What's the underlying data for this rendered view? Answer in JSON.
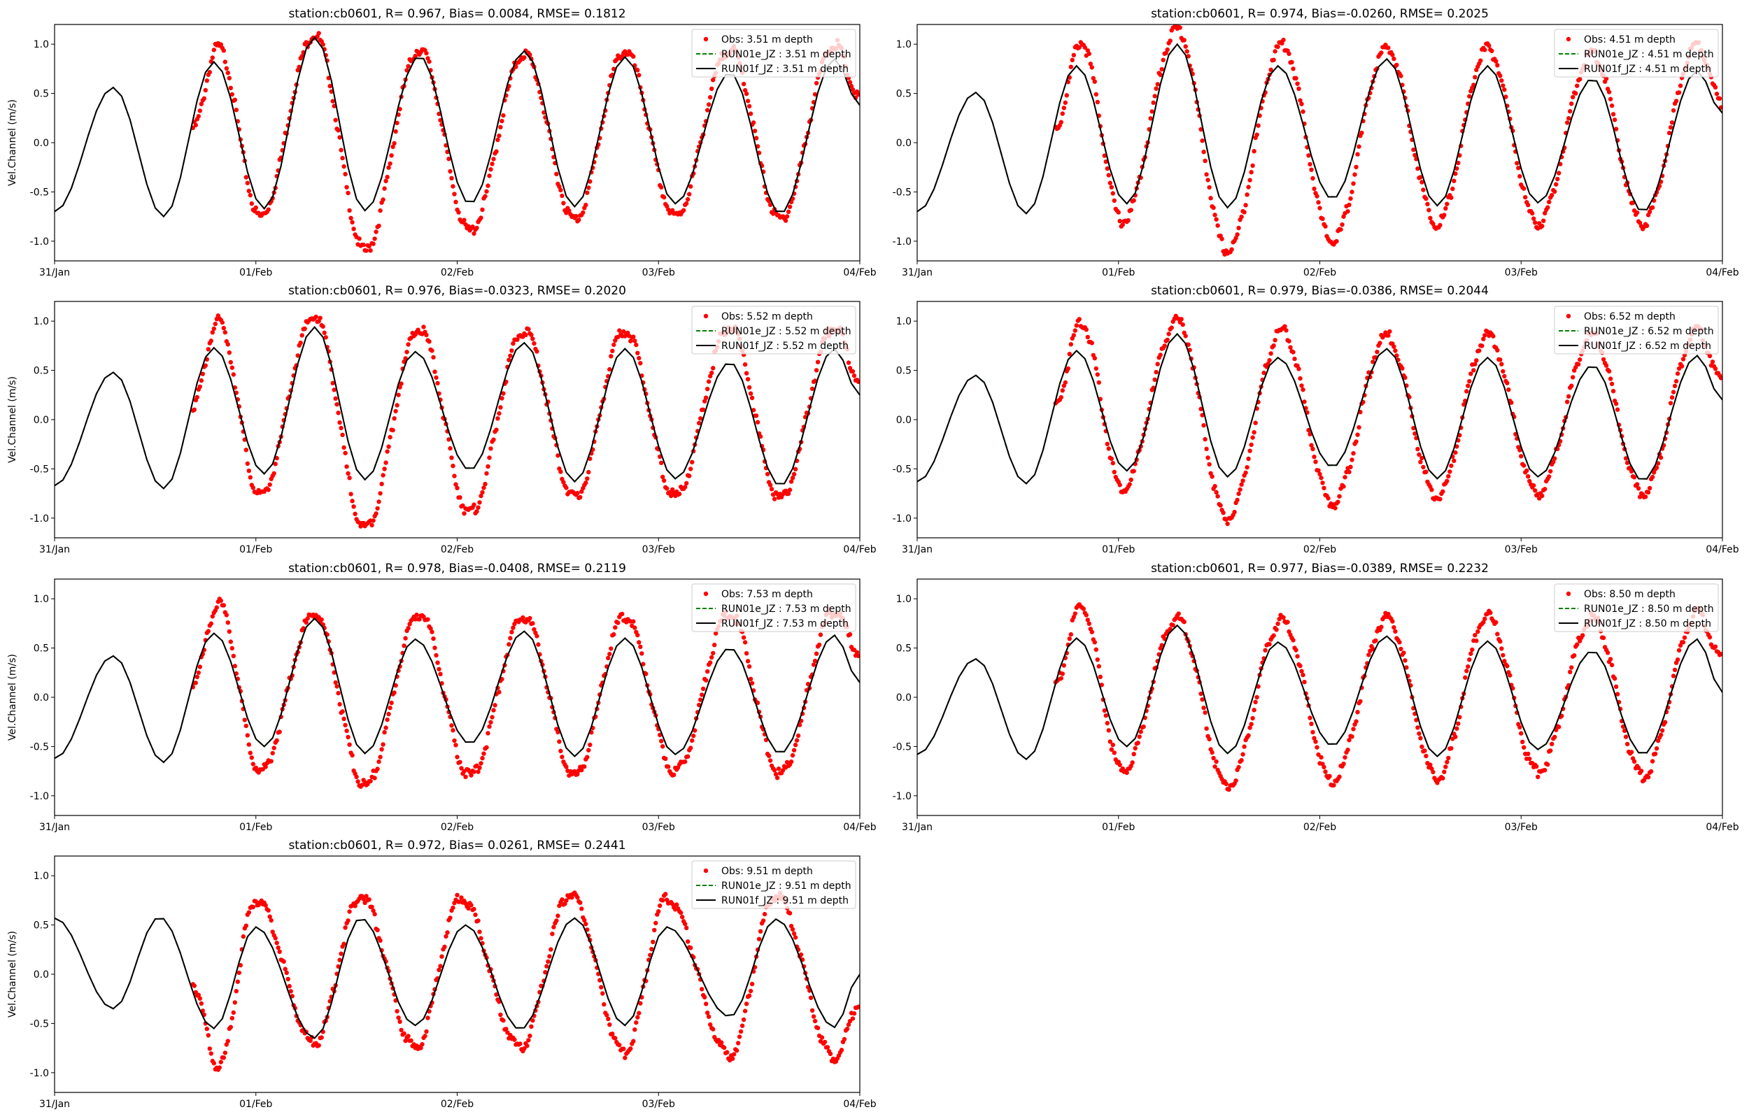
{
  "figure": {
    "ylabel": "Vel.Channel (m/s)",
    "xticks": [
      "31/Jan",
      "01/Feb",
      "02/Feb",
      "03/Feb",
      "04/Feb"
    ],
    "yticks": [
      "1.0",
      "0.5",
      "0.0",
      "-0.5",
      "-1.0"
    ],
    "colors": {
      "obs": "#ff0000",
      "run01e": "#008000",
      "run01f": "#000000"
    }
  },
  "chart_data": [
    {
      "type": "line+scatter",
      "title": "station:cb0601, R= 0.967, Bias= 0.0084, RMSE= 0.1812",
      "ylim": [
        -1.2,
        1.2
      ],
      "xlim": [
        "31/Jan 00:00",
        "04/Feb 00:00"
      ],
      "legend_position": "top-right",
      "legend": [
        "Obs: 3.51 m depth",
        "RUN01e_JZ : 3.51 m depth",
        "RUN01f_JZ : 3.51 m depth"
      ],
      "model_extrema": [
        [
          "31/Jan 00:00",
          -0.7
        ],
        [
          "31/Jan 07:00",
          0.56
        ],
        [
          "31/Jan 13:00",
          -0.75
        ],
        [
          "31/Jan 19:00",
          0.82
        ],
        [
          "01/Feb 01:00",
          -0.67
        ],
        [
          "01/Feb 07:00",
          1.07
        ],
        [
          "01/Feb 13:00",
          -0.69
        ],
        [
          "01/Feb 19:30",
          0.88
        ],
        [
          "02/Feb 01:30",
          -0.62
        ],
        [
          "02/Feb 08:00",
          0.93
        ],
        [
          "02/Feb 14:00",
          -0.65
        ],
        [
          "02/Feb 20:00",
          0.87
        ],
        [
          "03/Feb 02:00",
          -0.62
        ],
        [
          "03/Feb 08:30",
          0.71
        ],
        [
          "03/Feb 14:30",
          -0.72
        ],
        [
          "03/Feb 21:00",
          0.85
        ],
        [
          "04/Feb 00:00",
          0.38
        ]
      ],
      "obs_extrema": [
        [
          "31/Jan 16:30",
          0.15
        ],
        [
          "31/Jan 19:30",
          0.97
        ],
        [
          "01/Feb 00:30",
          -0.75
        ],
        [
          "01/Feb 07:00",
          1.1
        ],
        [
          "01/Feb 13:00",
          -1.1
        ],
        [
          "01/Feb 19:30",
          0.95
        ],
        [
          "02/Feb 01:30",
          -0.9
        ],
        [
          "02/Feb 08:00",
          0.9
        ],
        [
          "02/Feb 14:00",
          -0.78
        ],
        [
          "02/Feb 20:00",
          0.93
        ],
        [
          "03/Feb 02:00",
          -0.75
        ],
        [
          "03/Feb 08:30",
          0.95
        ],
        [
          "03/Feb 14:30",
          -0.78
        ],
        [
          "03/Feb 21:00",
          1.0
        ],
        [
          "04/Feb 00:00",
          0.45
        ]
      ]
    },
    {
      "type": "line+scatter",
      "title": "station:cb0601, R= 0.974, Bias=-0.0260, RMSE= 0.2025",
      "ylim": [
        -1.2,
        1.2
      ],
      "xlim": [
        "31/Jan 00:00",
        "04/Feb 00:00"
      ],
      "legend_position": "top-right",
      "legend": [
        "Obs: 4.51 m depth",
        "RUN01e_JZ : 4.51 m depth",
        "RUN01f_JZ : 4.51 m depth"
      ],
      "model_extrema": [
        [
          "31/Jan 00:00",
          -0.7
        ],
        [
          "31/Jan 07:00",
          0.51
        ],
        [
          "31/Jan 13:00",
          -0.72
        ],
        [
          "31/Jan 19:00",
          0.78
        ],
        [
          "01/Feb 01:00",
          -0.62
        ],
        [
          "01/Feb 07:00",
          1.0
        ],
        [
          "01/Feb 13:00",
          -0.66
        ],
        [
          "01/Feb 19:00",
          0.78
        ],
        [
          "02/Feb 01:30",
          -0.57
        ],
        [
          "02/Feb 08:00",
          0.85
        ],
        [
          "02/Feb 14:00",
          -0.64
        ],
        [
          "02/Feb 20:00",
          0.78
        ],
        [
          "03/Feb 02:00",
          -0.61
        ],
        [
          "03/Feb 08:30",
          0.65
        ],
        [
          "03/Feb 14:30",
          -0.7
        ],
        [
          "03/Feb 21:00",
          0.73
        ],
        [
          "04/Feb 00:00",
          0.3
        ]
      ],
      "obs_extrema": [
        [
          "31/Jan 16:30",
          0.15
        ],
        [
          "31/Jan 19:30",
          1.02
        ],
        [
          "01/Feb 00:30",
          -0.8
        ],
        [
          "01/Feb 07:00",
          1.15
        ],
        [
          "01/Feb 13:00",
          -1.1
        ],
        [
          "01/Feb 19:30",
          1.0
        ],
        [
          "02/Feb 01:30",
          -1.0
        ],
        [
          "02/Feb 08:00",
          0.95
        ],
        [
          "02/Feb 14:00",
          -0.82
        ],
        [
          "02/Feb 20:00",
          0.95
        ],
        [
          "03/Feb 02:00",
          -0.82
        ],
        [
          "03/Feb 08:30",
          0.9
        ],
        [
          "03/Feb 14:30",
          -0.82
        ],
        [
          "03/Feb 21:00",
          1.0
        ],
        [
          "04/Feb 00:00",
          0.4
        ]
      ]
    },
    {
      "type": "line+scatter",
      "title": "station:cb0601, R= 0.976, Bias=-0.0323, RMSE= 0.2020",
      "ylim": [
        -1.2,
        1.2
      ],
      "xlim": [
        "31/Jan 00:00",
        "04/Feb 00:00"
      ],
      "legend_position": "top-right",
      "legend": [
        "Obs: 5.52 m depth",
        "RUN01e_JZ : 5.52 m depth",
        "RUN01f_JZ : 5.52 m depth"
      ],
      "model_extrema": [
        [
          "31/Jan 00:00",
          -0.67
        ],
        [
          "31/Jan 07:00",
          0.48
        ],
        [
          "31/Jan 13:00",
          -0.7
        ],
        [
          "31/Jan 19:00",
          0.73
        ],
        [
          "01/Feb 01:00",
          -0.55
        ],
        [
          "01/Feb 07:00",
          0.94
        ],
        [
          "01/Feb 13:00",
          -0.61
        ],
        [
          "01/Feb 19:00",
          0.69
        ],
        [
          "02/Feb 01:30",
          -0.51
        ],
        [
          "02/Feb 08:00",
          0.78
        ],
        [
          "02/Feb 14:00",
          -0.63
        ],
        [
          "02/Feb 20:00",
          0.72
        ],
        [
          "03/Feb 02:00",
          -0.6
        ],
        [
          "03/Feb 08:30",
          0.58
        ],
        [
          "03/Feb 14:30",
          -0.67
        ],
        [
          "03/Feb 21:00",
          0.72
        ],
        [
          "04/Feb 00:00",
          0.25
        ]
      ],
      "obs_extrema": [
        [
          "31/Jan 16:30",
          0.15
        ],
        [
          "31/Jan 19:30",
          1.0
        ],
        [
          "01/Feb 00:30",
          -0.78
        ],
        [
          "01/Feb 07:00",
          1.05
        ],
        [
          "01/Feb 13:00",
          -1.1
        ],
        [
          "01/Feb 19:30",
          0.92
        ],
        [
          "02/Feb 01:30",
          -0.95
        ],
        [
          "02/Feb 08:00",
          0.9
        ],
        [
          "02/Feb 14:00",
          -0.8
        ],
        [
          "02/Feb 20:00",
          0.9
        ],
        [
          "03/Feb 02:00",
          -0.78
        ],
        [
          "03/Feb 08:30",
          0.95
        ],
        [
          "03/Feb 14:30",
          -0.8
        ],
        [
          "03/Feb 21:00",
          0.95
        ],
        [
          "04/Feb 00:00",
          0.4
        ]
      ]
    },
    {
      "type": "line+scatter",
      "title": "station:cb0601, R= 0.979, Bias=-0.0386, RMSE= 0.2044",
      "ylim": [
        -1.2,
        1.2
      ],
      "xlim": [
        "31/Jan 00:00",
        "04/Feb 00:00"
      ],
      "legend_position": "top-right",
      "legend": [
        "Obs: 6.52 m depth",
        "RUN01e_JZ : 6.52 m depth",
        "RUN01f_JZ : 6.52 m depth"
      ],
      "model_extrema": [
        [
          "31/Jan 00:00",
          -0.63
        ],
        [
          "31/Jan 07:00",
          0.45
        ],
        [
          "31/Jan 13:00",
          -0.65
        ],
        [
          "31/Jan 19:00",
          0.7
        ],
        [
          "01/Feb 01:00",
          -0.52
        ],
        [
          "01/Feb 07:00",
          0.87
        ],
        [
          "01/Feb 13:00",
          -0.58
        ],
        [
          "01/Feb 19:00",
          0.63
        ],
        [
          "02/Feb 01:30",
          -0.48
        ],
        [
          "02/Feb 08:00",
          0.72
        ],
        [
          "02/Feb 14:00",
          -0.6
        ],
        [
          "02/Feb 20:00",
          0.63
        ],
        [
          "03/Feb 02:00",
          -0.58
        ],
        [
          "03/Feb 08:30",
          0.55
        ],
        [
          "03/Feb 14:30",
          -0.62
        ],
        [
          "03/Feb 21:00",
          0.65
        ],
        [
          "04/Feb 00:00",
          0.2
        ]
      ],
      "obs_extrema": [
        [
          "31/Jan 16:30",
          0.15
        ],
        [
          "31/Jan 19:30",
          1.0
        ],
        [
          "01/Feb 00:30",
          -0.7
        ],
        [
          "01/Feb 07:00",
          1.0
        ],
        [
          "01/Feb 13:00",
          -1.0
        ],
        [
          "01/Feb 19:30",
          0.9
        ],
        [
          "02/Feb 01:30",
          -0.85
        ],
        [
          "02/Feb 08:00",
          0.85
        ],
        [
          "02/Feb 14:00",
          -0.78
        ],
        [
          "02/Feb 20:00",
          0.85
        ],
        [
          "03/Feb 02:00",
          -0.75
        ],
        [
          "03/Feb 08:30",
          0.85
        ],
        [
          "03/Feb 14:30",
          -0.75
        ],
        [
          "03/Feb 21:00",
          0.9
        ],
        [
          "04/Feb 00:00",
          0.4
        ]
      ]
    },
    {
      "type": "line+scatter",
      "title": "station:cb0601, R= 0.978, Bias=-0.0408, RMSE= 0.2119",
      "ylim": [
        -1.2,
        1.2
      ],
      "xlim": [
        "31/Jan 00:00",
        "04/Feb 00:00"
      ],
      "legend_position": "top-right",
      "legend": [
        "Obs: 7.53 m depth",
        "RUN01e_JZ : 7.53 m depth",
        "RUN01f_JZ : 7.53 m depth"
      ],
      "model_extrema": [
        [
          "31/Jan 00:00",
          -0.62
        ],
        [
          "31/Jan 07:00",
          0.42
        ],
        [
          "31/Jan 13:00",
          -0.66
        ],
        [
          "31/Jan 19:00",
          0.65
        ],
        [
          "01/Feb 01:00",
          -0.5
        ],
        [
          "01/Feb 07:00",
          0.8
        ],
        [
          "01/Feb 13:00",
          -0.57
        ],
        [
          "01/Feb 19:00",
          0.59
        ],
        [
          "02/Feb 01:30",
          -0.47
        ],
        [
          "02/Feb 08:00",
          0.67
        ],
        [
          "02/Feb 14:00",
          -0.6
        ],
        [
          "02/Feb 20:00",
          0.6
        ],
        [
          "03/Feb 02:00",
          -0.58
        ],
        [
          "03/Feb 08:30",
          0.5
        ],
        [
          "03/Feb 14:30",
          -0.57
        ],
        [
          "03/Feb 21:00",
          0.63
        ],
        [
          "04/Feb 00:00",
          0.15
        ]
      ],
      "obs_extrema": [
        [
          "31/Jan 16:30",
          0.15
        ],
        [
          "31/Jan 19:30",
          0.95
        ],
        [
          "01/Feb 00:30",
          -0.75
        ],
        [
          "01/Feb 07:00",
          0.85
        ],
        [
          "01/Feb 13:00",
          -0.9
        ],
        [
          "01/Feb 19:30",
          0.85
        ],
        [
          "02/Feb 01:30",
          -0.8
        ],
        [
          "02/Feb 08:00",
          0.82
        ],
        [
          "02/Feb 14:00",
          -0.8
        ],
        [
          "02/Feb 20:00",
          0.82
        ],
        [
          "03/Feb 02:00",
          -0.75
        ],
        [
          "03/Feb 08:30",
          0.85
        ],
        [
          "03/Feb 14:30",
          -0.78
        ],
        [
          "03/Feb 21:00",
          0.88
        ],
        [
          "04/Feb 00:00",
          0.45
        ]
      ]
    },
    {
      "type": "line+scatter",
      "title": "station:cb0601, R= 0.977, Bias=-0.0389, RMSE= 0.2232",
      "ylim": [
        -1.2,
        1.2
      ],
      "xlim": [
        "31/Jan 00:00",
        "04/Feb 00:00"
      ],
      "legend_position": "top-right",
      "legend": [
        "Obs: 8.50 m depth",
        "RUN01e_JZ : 8.50 m depth",
        "RUN01f_JZ : 8.50 m depth"
      ],
      "model_extrema": [
        [
          "31/Jan 00:00",
          -0.58
        ],
        [
          "31/Jan 07:00",
          0.39
        ],
        [
          "31/Jan 13:00",
          -0.63
        ],
        [
          "31/Jan 19:00",
          0.6
        ],
        [
          "01/Feb 01:00",
          -0.5
        ],
        [
          "01/Feb 07:00",
          0.73
        ],
        [
          "01/Feb 13:00",
          -0.57
        ],
        [
          "01/Feb 19:00",
          0.56
        ],
        [
          "02/Feb 01:30",
          -0.49
        ],
        [
          "02/Feb 08:00",
          0.62
        ],
        [
          "02/Feb 14:00",
          -0.6
        ],
        [
          "02/Feb 20:00",
          0.57
        ],
        [
          "03/Feb 02:00",
          -0.53
        ],
        [
          "03/Feb 08:30",
          0.47
        ],
        [
          "03/Feb 14:30",
          -0.58
        ],
        [
          "03/Feb 21:00",
          0.59
        ],
        [
          "04/Feb 00:00",
          0.05
        ]
      ],
      "obs_extrema": [
        [
          "31/Jan 16:30",
          0.15
        ],
        [
          "31/Jan 19:30",
          0.92
        ],
        [
          "01/Feb 00:30",
          -0.75
        ],
        [
          "01/Feb 07:00",
          0.8
        ],
        [
          "01/Feb 13:00",
          -0.9
        ],
        [
          "01/Feb 19:30",
          0.78
        ],
        [
          "02/Feb 01:30",
          -0.85
        ],
        [
          "02/Feb 08:00",
          0.8
        ],
        [
          "02/Feb 14:00",
          -0.82
        ],
        [
          "02/Feb 20:00",
          0.82
        ],
        [
          "03/Feb 02:00",
          -0.75
        ],
        [
          "03/Feb 08:30",
          0.8
        ],
        [
          "03/Feb 14:30",
          -0.8
        ],
        [
          "03/Feb 21:00",
          0.85
        ],
        [
          "04/Feb 00:00",
          0.4
        ]
      ]
    },
    {
      "type": "line+scatter",
      "title": "station:cb0601, R= 0.972, Bias= 0.0261, RMSE= 0.2441",
      "ylim": [
        -1.2,
        1.2
      ],
      "xlim": [
        "31/Jan 00:00",
        "04/Feb 00:00"
      ],
      "legend_position": "top-right",
      "legend": [
        "Obs: 9.51 m depth",
        "RUN01e_JZ : 9.51 m depth",
        "RUN01f_JZ : 9.51 m depth"
      ],
      "model_extrema": [
        [
          "31/Jan 00:00",
          0.57
        ],
        [
          "31/Jan 07:00",
          -0.35
        ],
        [
          "31/Jan 12:30",
          0.58
        ],
        [
          "31/Jan 19:00",
          -0.55
        ],
        [
          "01/Feb 00:00",
          0.48
        ],
        [
          "01/Feb 07:00",
          -0.65
        ],
        [
          "01/Feb 12:30",
          0.57
        ],
        [
          "01/Feb 19:00",
          -0.52
        ],
        [
          "02/Feb 01:00",
          0.5
        ],
        [
          "02/Feb 07:30",
          -0.56
        ],
        [
          "02/Feb 14:00",
          0.57
        ],
        [
          "02/Feb 20:00",
          -0.52
        ],
        [
          "03/Feb 01:00",
          0.48
        ],
        [
          "03/Feb 08:30",
          -0.43
        ],
        [
          "03/Feb 14:00",
          0.56
        ],
        [
          "03/Feb 21:00",
          -0.54
        ],
        [
          "04/Feb 00:00",
          0.0
        ]
      ],
      "obs_extrema": [
        [
          "31/Jan 16:30",
          -0.1
        ],
        [
          "31/Jan 19:30",
          -0.95
        ],
        [
          "01/Feb 00:00",
          0.75
        ],
        [
          "01/Feb 07:00",
          -0.7
        ],
        [
          "01/Feb 12:30",
          0.8
        ],
        [
          "01/Feb 19:00",
          -0.75
        ],
        [
          "02/Feb 00:30",
          0.78
        ],
        [
          "02/Feb 07:30",
          -0.75
        ],
        [
          "02/Feb 13:30",
          0.82
        ],
        [
          "02/Feb 20:00",
          -0.8
        ],
        [
          "03/Feb 01:00",
          0.78
        ],
        [
          "03/Feb 08:30",
          -0.82
        ],
        [
          "03/Feb 14:00",
          0.8
        ],
        [
          "03/Feb 21:00",
          -0.85
        ],
        [
          "04/Feb 00:00",
          -0.3
        ]
      ]
    }
  ]
}
